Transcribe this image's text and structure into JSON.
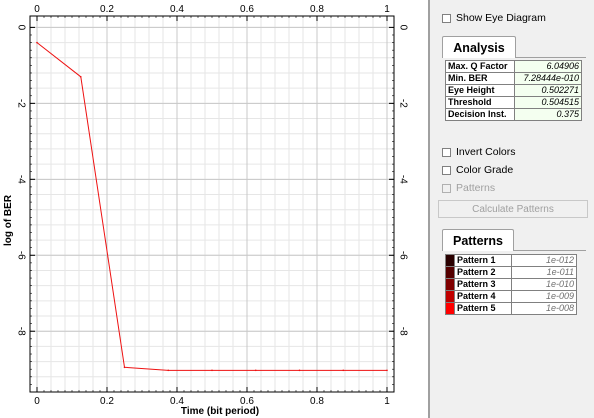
{
  "chart_data": {
    "type": "line",
    "x": [
      0,
      0.125,
      0.25,
      0.375,
      0.5,
      0.625,
      0.75,
      0.875,
      1
    ],
    "y": [
      -0.4,
      -1.3,
      -8.95,
      -9.03,
      -9.03,
      -9.03,
      -9.03,
      -9.03,
      -9.03
    ],
    "xlim": [
      -0.02,
      1.02
    ],
    "ylim": [
      -9.6,
      0.3
    ],
    "x_ticks": [
      "0",
      "0.2",
      "0.4",
      "0.6",
      "0.8",
      "1"
    ],
    "x_tick_values": [
      0,
      0.2,
      0.4,
      0.6,
      0.8,
      1
    ],
    "y_ticks": [
      "0",
      "-2",
      "-4",
      "-6",
      "-8"
    ],
    "y_tick_values": [
      0,
      -2,
      -4,
      -6,
      -8
    ],
    "xlabel": "Time (bit period)",
    "ylabel": "log of BER",
    "grid": true,
    "line_color": "#ee1111"
  },
  "panel": {
    "show_eye_label": "Show Eye Diagram",
    "analysis_tab": "Analysis",
    "analysis_rows": [
      {
        "label": "Max. Q Factor",
        "value": "6.04906"
      },
      {
        "label": "Min. BER",
        "value": "7.28444e-010"
      },
      {
        "label": "Eye Height",
        "value": "0.502271"
      },
      {
        "label": "Threshold",
        "value": "0.504515"
      },
      {
        "label": "Decision Inst.",
        "value": "0.375"
      }
    ],
    "invert_label": "Invert Colors",
    "color_grade_label": "Color Grade",
    "patterns_check_label": "Patterns",
    "calc_button": "Calculate Patterns",
    "patterns_tab": "Patterns",
    "pattern_rows": [
      {
        "label": "Pattern 1",
        "value": "1e-012",
        "color": "#2a0000"
      },
      {
        "label": "Pattern 2",
        "value": "1e-011",
        "color": "#550000"
      },
      {
        "label": "Pattern 3",
        "value": "1e-010",
        "color": "#800000"
      },
      {
        "label": "Pattern 4",
        "value": "1e-009",
        "color": "#c00000"
      },
      {
        "label": "Pattern 5",
        "value": "1e-008",
        "color": "#ff0000"
      }
    ]
  }
}
